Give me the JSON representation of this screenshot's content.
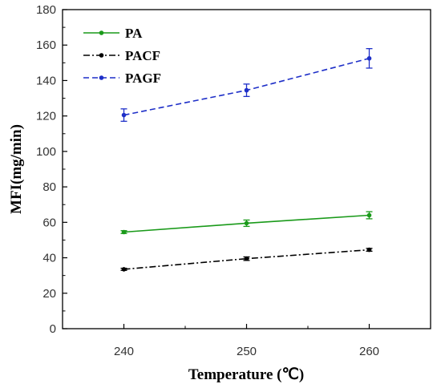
{
  "chart_data": {
    "type": "line",
    "xlabel": "Temperature (℃)",
    "ylabel": "MFI(mg/min)",
    "x": [
      240,
      250,
      260
    ],
    "xlim": [
      235,
      265
    ],
    "ylim": [
      0,
      180
    ],
    "xticks": [
      "240",
      "250",
      "260"
    ],
    "yticks": [
      "0",
      "20",
      "40",
      "60",
      "80",
      "100",
      "120",
      "140",
      "160",
      "180"
    ],
    "legend_position": "top-left",
    "grid": false,
    "series": [
      {
        "name": "PA",
        "values": [
          54.5,
          59.5,
          64
        ],
        "errors": [
          0.8,
          1.8,
          2.0
        ],
        "color": "#1a9a1a",
        "dash": "solid"
      },
      {
        "name": "PACF",
        "values": [
          33.5,
          39.5,
          44.5
        ],
        "errors": [
          0.6,
          1.0,
          0.8
        ],
        "color": "#000000",
        "dash": "dashdot"
      },
      {
        "name": "PAGF",
        "values": [
          120.5,
          134.5,
          152.5
        ],
        "errors": [
          3.5,
          3.5,
          5.5
        ],
        "color": "#1e2fc8",
        "dash": "dashed"
      }
    ]
  }
}
